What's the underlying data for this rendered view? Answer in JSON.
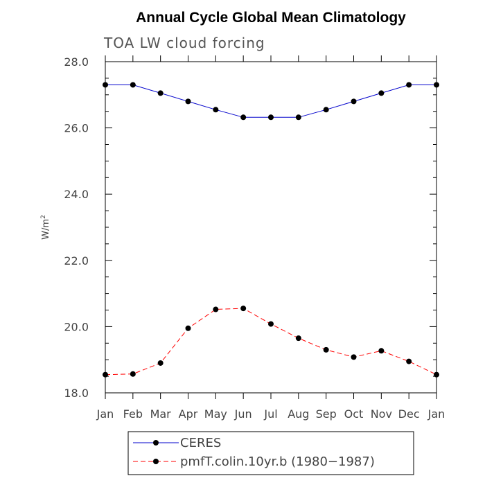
{
  "chart_data": {
    "type": "line",
    "title": "Annual Cycle Global Mean Climatology",
    "subtitle": "TOA LW cloud forcing",
    "ylabel": "W/m",
    "ylabel_sup": "2",
    "xlabel": "",
    "categories": [
      "Jan",
      "Feb",
      "Mar",
      "Apr",
      "May",
      "Jun",
      "Jul",
      "Aug",
      "Sep",
      "Oct",
      "Nov",
      "Dec",
      "Jan"
    ],
    "ylim": [
      18.0,
      28.0
    ],
    "yticks": [
      "18.0",
      "20.0",
      "22.0",
      "24.0",
      "26.0",
      "28.0"
    ],
    "grid": false,
    "legend_position": "bottom",
    "series": [
      {
        "name": "CERES",
        "color": "#0000cc",
        "dash": "solid",
        "values": [
          27.3,
          27.3,
          27.05,
          26.8,
          26.55,
          26.32,
          26.32,
          26.32,
          26.55,
          26.8,
          27.05,
          27.3,
          27.3
        ]
      },
      {
        "name": "pmfT.colin.10yr.b (1980−1987)",
        "color": "#ff0000",
        "dash": "dashed",
        "values": [
          18.55,
          18.57,
          18.9,
          19.95,
          20.52,
          20.55,
          20.08,
          19.65,
          19.3,
          19.08,
          19.27,
          18.95,
          18.55
        ]
      }
    ]
  }
}
